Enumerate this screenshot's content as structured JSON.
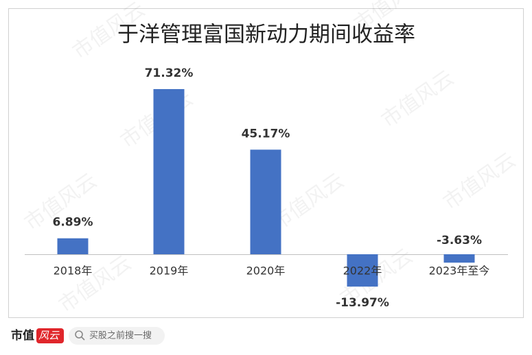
{
  "chart_data": {
    "type": "bar",
    "title": "于洋管理富国新动力期间收益率",
    "categories": [
      "2018年",
      "2019年",
      "2020年",
      "2022年",
      "2023年至今"
    ],
    "values": [
      6.89,
      71.32,
      45.17,
      -13.97,
      -3.63
    ],
    "value_labels": [
      "6.89%",
      "71.32%",
      "45.17%",
      "-13.97%",
      "-3.63%"
    ],
    "color": "#4472c4"
  },
  "watermark": "市值风云",
  "footer": {
    "logo_main": "市值",
    "logo_accent": "风云",
    "search": "买股之前搜一搜"
  }
}
